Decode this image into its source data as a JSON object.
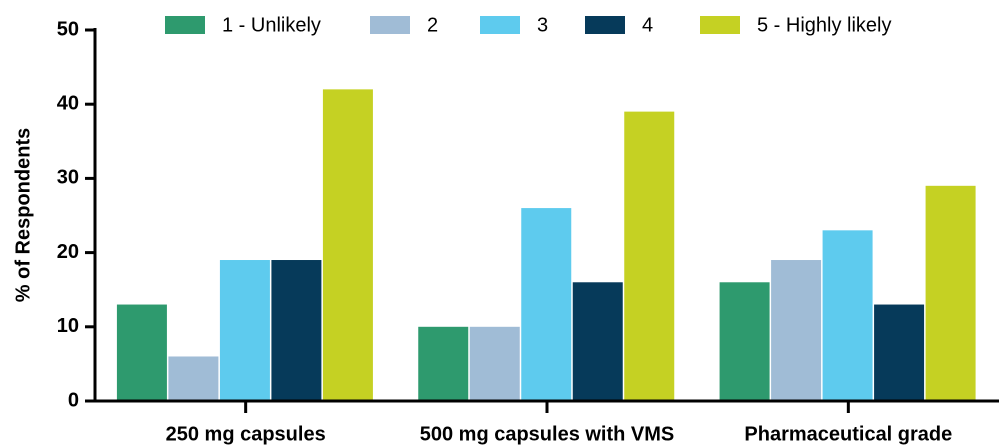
{
  "chart_data": {
    "type": "bar",
    "y_label": "% of Respondents",
    "categories": [
      "250 mg capsules",
      "500 mg capsules with VMS",
      "Pharmaceutical grade"
    ],
    "series": [
      {
        "name": "1 - Unlikely",
        "color": "#2e9a6e",
        "values": [
          13,
          10,
          16
        ]
      },
      {
        "name": "2",
        "color": "#a0bcd6",
        "values": [
          6,
          10,
          19
        ]
      },
      {
        "name": "3",
        "color": "#5ecbee",
        "values": [
          19,
          26,
          23
        ]
      },
      {
        "name": "4",
        "color": "#063a5a",
        "values": [
          19,
          16,
          13
        ]
      },
      {
        "name": "5 - Highly likely",
        "color": "#c5d123",
        "values": [
          42,
          39,
          29
        ]
      }
    ],
    "ylim": [
      0,
      50
    ],
    "yticks": [
      0,
      10,
      20,
      30,
      40,
      50
    ],
    "grid": false,
    "legend": "top"
  }
}
